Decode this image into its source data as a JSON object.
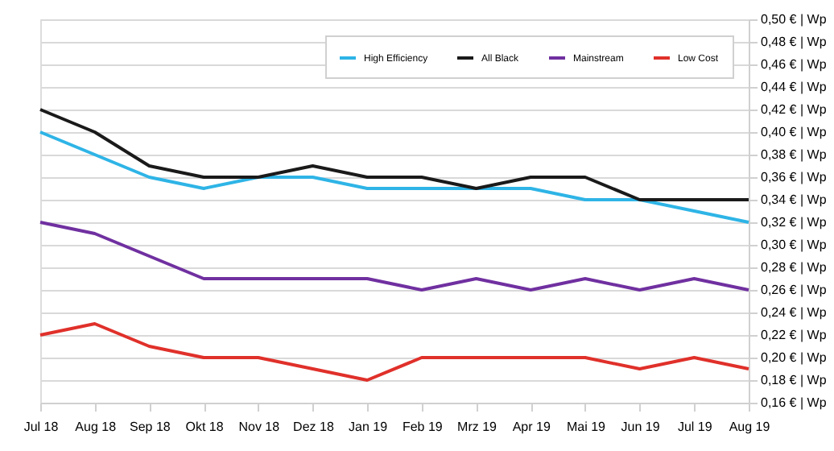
{
  "chart_data": {
    "type": "line",
    "categories": [
      "Jul 18",
      "Aug 18",
      "Sep 18",
      "Okt 18",
      "Nov 18",
      "Dez 18",
      "Jan 19",
      "Feb 19",
      "Mrz 19",
      "Apr 19",
      "Mai 19",
      "Jun 19",
      "Jul 19",
      "Aug 19"
    ],
    "series": [
      {
        "name": "High Efficiency",
        "color": "#2eb4e6",
        "values": [
          0.4,
          0.38,
          0.36,
          0.35,
          0.36,
          0.36,
          0.35,
          0.35,
          0.35,
          0.35,
          0.34,
          0.34,
          0.33,
          0.32
        ]
      },
      {
        "name": "All Black",
        "color": "#1a1a1a",
        "values": [
          0.42,
          0.4,
          0.37,
          0.36,
          0.36,
          0.37,
          0.36,
          0.36,
          0.35,
          0.36,
          0.36,
          0.34,
          0.34,
          0.34
        ]
      },
      {
        "name": "Mainstream",
        "color": "#7030a0",
        "values": [
          0.32,
          0.31,
          0.29,
          0.27,
          0.27,
          0.27,
          0.27,
          0.26,
          0.27,
          0.26,
          0.27,
          0.26,
          0.27,
          0.26
        ]
      },
      {
        "name": "Low Cost",
        "color": "#e0302a",
        "values": [
          0.22,
          0.23,
          0.21,
          0.2,
          0.2,
          0.19,
          0.18,
          0.2,
          0.2,
          0.2,
          0.2,
          0.19,
          0.2,
          0.19
        ]
      }
    ],
    "ylim": [
      0.16,
      0.5
    ],
    "yticks": [
      {
        "value": 0.16,
        "label": "0,16 € | Wp"
      },
      {
        "value": 0.18,
        "label": "0,18 € | Wp"
      },
      {
        "value": 0.2,
        "label": "0,20 € | Wp"
      },
      {
        "value": 0.22,
        "label": "0,22 € | Wp"
      },
      {
        "value": 0.24,
        "label": "0,24 € | Wp"
      },
      {
        "value": 0.26,
        "label": "0,26 € | Wp"
      },
      {
        "value": 0.28,
        "label": "0,28 € | Wp"
      },
      {
        "value": 0.3,
        "label": "0,30 € | Wp"
      },
      {
        "value": 0.32,
        "label": "0,32 € | Wp"
      },
      {
        "value": 0.34,
        "label": "0,34 € | Wp"
      },
      {
        "value": 0.36,
        "label": "0,36 € | Wp"
      },
      {
        "value": 0.38,
        "label": "0,38 € | Wp"
      },
      {
        "value": 0.4,
        "label": "0,40 € | Wp"
      },
      {
        "value": 0.42,
        "label": "0,42 € | Wp"
      },
      {
        "value": 0.44,
        "label": "0,44 € | Wp"
      },
      {
        "value": 0.46,
        "label": "0,46 € | Wp"
      },
      {
        "value": 0.48,
        "label": "0,48 € | Wp"
      },
      {
        "value": 0.5,
        "label": "0,50 € | Wp"
      }
    ],
    "grid": "y",
    "legend": "top right",
    "marker": "none",
    "line_style": "solid"
  }
}
